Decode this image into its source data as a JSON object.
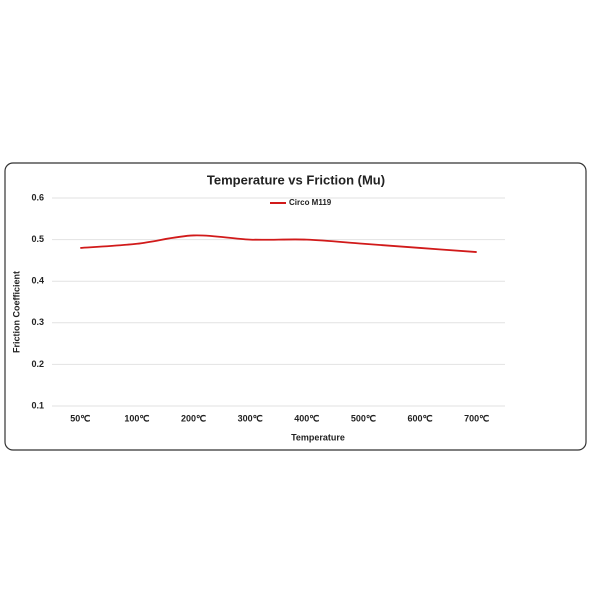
{
  "chart_data": {
    "type": "line",
    "title": "Temperature vs Friction (Mu)",
    "x_label": "Temperature",
    "y_label": "Friction Coefficient",
    "categories": [
      "50℃",
      "100℃",
      "200℃",
      "300℃",
      "400℃",
      "500℃",
      "600℃",
      "700℃"
    ],
    "series": [
      {
        "name": "Circo M119",
        "color": "#d11a1a",
        "values": [
          0.48,
          0.49,
          0.51,
          0.5,
          0.5,
          0.49,
          0.48,
          0.47
        ]
      }
    ],
    "ylim": [
      0.1,
      0.6
    ],
    "yticks": [
      0.1,
      0.2,
      0.3,
      0.4,
      0.5,
      0.6
    ],
    "grid": true,
    "legend": "top"
  }
}
